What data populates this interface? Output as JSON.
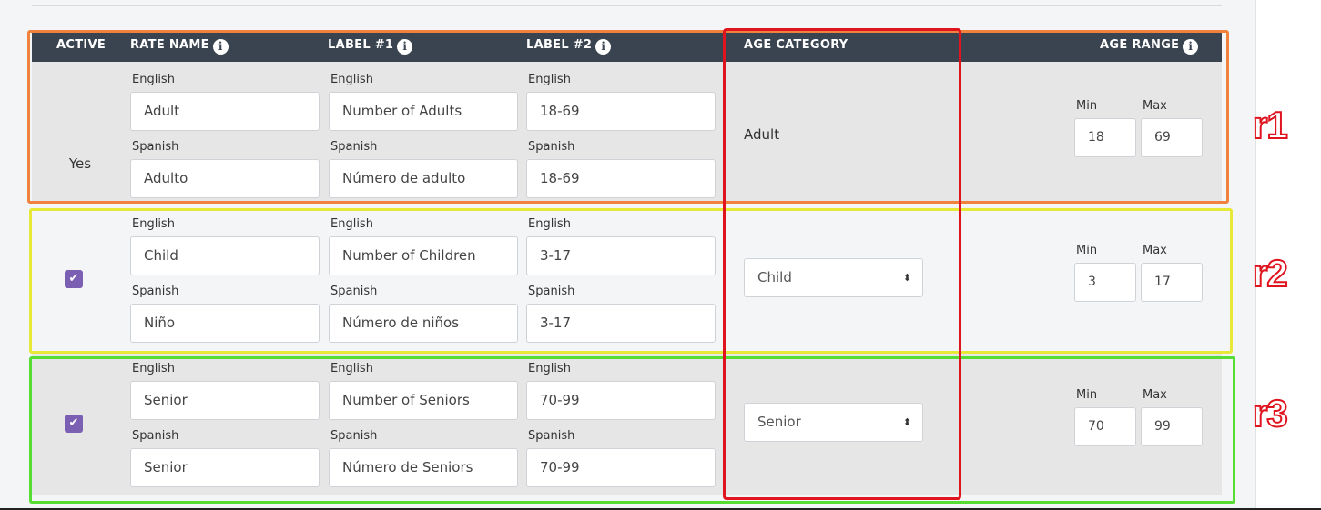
{
  "header": {
    "active": "ACTIVE",
    "rate_name": "RATE NAME",
    "label1": "LABEL #1",
    "label2": "LABEL #2",
    "age_category": "AGE CATEGORY",
    "age_range": "AGE RANGE",
    "info_glyph": "i"
  },
  "lang": {
    "english": "English",
    "spanish": "Spanish"
  },
  "range_labels": {
    "min": "Min",
    "max": "Max"
  },
  "rows": [
    {
      "active": "Yes",
      "rate_name": {
        "english": "Adult",
        "spanish": "Adulto"
      },
      "label1": {
        "english": "Number of Adults",
        "spanish": "Número de adulto"
      },
      "label2": {
        "english": "18-69",
        "spanish": "18-69"
      },
      "age_category": "Adult",
      "min": "18",
      "max": "69",
      "annotation": "r1"
    },
    {
      "active_checked": true,
      "checkmark": "✔",
      "rate_name": {
        "english": "Child",
        "spanish": "Niño"
      },
      "label1": {
        "english": "Number of Children",
        "spanish": "Número de niños"
      },
      "label2": {
        "english": "3-17",
        "spanish": "3-17"
      },
      "age_category": "Child",
      "min": "3",
      "max": "17",
      "annotation": "r2"
    },
    {
      "active_checked": true,
      "checkmark": "✔",
      "rate_name": {
        "english": "Senior",
        "spanish": "Senior"
      },
      "label1": {
        "english": "Number of Seniors",
        "spanish": "Número de Seniors"
      },
      "label2": {
        "english": "70-99",
        "spanish": "70-99"
      },
      "age_category": "Senior",
      "min": "70",
      "max": "99",
      "annotation": "r3"
    }
  ],
  "select_arrows": "⬍",
  "colors": {
    "header_bg": "#3a4450",
    "checkbox": "#7b5fb3",
    "anno_r1": "#f0823e",
    "anno_r2": "#e8e838",
    "anno_r3": "#55dd33",
    "anno_age_column": "#e0141e"
  }
}
